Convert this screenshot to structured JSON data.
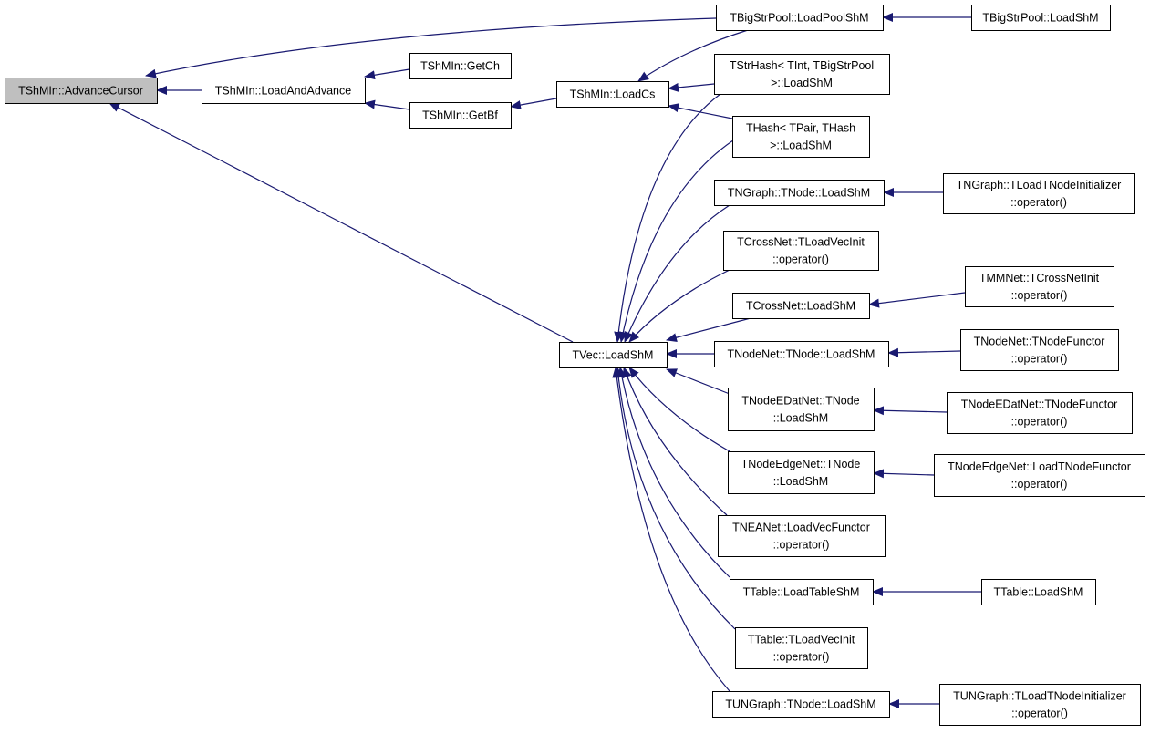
{
  "colors": {
    "edge": "#191970",
    "root_fill": "#bfbfbf",
    "node_fill": "#ffffff",
    "border": "#000000"
  },
  "nodes": {
    "advance_cursor": [
      "TShMIn::AdvanceCursor"
    ],
    "load_and_advance": [
      "TShMIn::LoadAndAdvance"
    ],
    "get_ch": [
      "TShMIn::GetCh"
    ],
    "get_bf": [
      "TShMIn::GetBf"
    ],
    "load_cs": [
      "TShMIn::LoadCs"
    ],
    "load_pool_shm": [
      "TBigStrPool::LoadPoolShM"
    ],
    "bigstrpool_load_shm": [
      "TBigStrPool::LoadShM"
    ],
    "strhash_load_shm": [
      "TStrHash< TInt, TBigStrPool",
      ">::LoadShM"
    ],
    "thash_load_shm": [
      "THash< TPair, THash",
      ">::LoadShM"
    ],
    "tngraph_tnode_load_shm": [
      "TNGraph::TNode::LoadShM"
    ],
    "tngraph_init_op": [
      "TNGraph::TLoadTNodeInitializer",
      "::operator()"
    ],
    "tcrossnet_loadvecinit_op": [
      "TCrossNet::TLoadVecInit",
      "::operator()"
    ],
    "tcrossnet_load_shm": [
      "TCrossNet::LoadShM"
    ],
    "tmmnet_init_op": [
      "TMMNet::TCrossNetInit",
      "::operator()"
    ],
    "tvec_load_shm": [
      "TVec::LoadShM"
    ],
    "tnodenet_tnode_load_shm": [
      "TNodeNet::TNode::LoadShM"
    ],
    "tnodenet_functor_op": [
      "TNodeNet::TNodeFunctor",
      "::operator()"
    ],
    "tnodeedatnet_tnode_load_shm": [
      "TNodeEDatNet::TNode",
      "::LoadShM"
    ],
    "tnodeedatnet_functor_op": [
      "TNodeEDatNet::TNodeFunctor",
      "::operator()"
    ],
    "tnodeedgenet_tnode_load_shm": [
      "TNodeEdgeNet::TNode",
      "::LoadShM"
    ],
    "tnodeedgenet_functor_op": [
      "TNodeEdgeNet::LoadTNodeFunctor",
      "::operator()"
    ],
    "tneanet_functor_op": [
      "TNEANet::LoadVecFunctor",
      "::operator()"
    ],
    "ttable_load_table_shm": [
      "TTable::LoadTableShM"
    ],
    "ttable_load_shm": [
      "TTable::LoadShM"
    ],
    "ttable_loadvecinit_op": [
      "TTable::TLoadVecInit",
      "::operator()"
    ],
    "tungraph_tnode_load_shm": [
      "TUNGraph::TNode::LoadShM"
    ],
    "tungraph_init_op": [
      "TUNGraph::TLoadTNodeInitializer",
      "::operator()"
    ]
  },
  "root": "advance_cursor",
  "edges": [
    [
      "load_and_advance",
      "advance_cursor"
    ],
    [
      "load_pool_shm",
      "advance_cursor"
    ],
    [
      "tvec_load_shm",
      "advance_cursor"
    ],
    [
      "get_ch",
      "load_and_advance"
    ],
    [
      "get_bf",
      "load_and_advance"
    ],
    [
      "load_cs",
      "get_bf"
    ],
    [
      "bigstrpool_load_shm",
      "load_pool_shm"
    ],
    [
      "load_pool_shm",
      "load_cs"
    ],
    [
      "strhash_load_shm",
      "load_cs"
    ],
    [
      "thash_load_shm",
      "load_cs"
    ],
    [
      "strhash_load_shm",
      "tvec_load_shm"
    ],
    [
      "thash_load_shm",
      "tvec_load_shm"
    ],
    [
      "tngraph_tnode_load_shm",
      "tvec_load_shm"
    ],
    [
      "tcrossnet_loadvecinit_op",
      "tvec_load_shm"
    ],
    [
      "tcrossnet_load_shm",
      "tvec_load_shm"
    ],
    [
      "tnodenet_tnode_load_shm",
      "tvec_load_shm"
    ],
    [
      "tnodeedatnet_tnode_load_shm",
      "tvec_load_shm"
    ],
    [
      "tnodeedgenet_tnode_load_shm",
      "tvec_load_shm"
    ],
    [
      "tneanet_functor_op",
      "tvec_load_shm"
    ],
    [
      "ttable_load_table_shm",
      "tvec_load_shm"
    ],
    [
      "ttable_loadvecinit_op",
      "tvec_load_shm"
    ],
    [
      "tungraph_tnode_load_shm",
      "tvec_load_shm"
    ],
    [
      "tngraph_init_op",
      "tngraph_tnode_load_shm"
    ],
    [
      "tmmnet_init_op",
      "tcrossnet_load_shm"
    ],
    [
      "tnodenet_functor_op",
      "tnodenet_tnode_load_shm"
    ],
    [
      "tnodeedatnet_functor_op",
      "tnodeedatnet_tnode_load_shm"
    ],
    [
      "tnodeedgenet_functor_op",
      "tnodeedgenet_tnode_load_shm"
    ],
    [
      "ttable_load_shm",
      "ttable_load_table_shm"
    ],
    [
      "tungraph_init_op",
      "tungraph_tnode_load_shm"
    ]
  ]
}
